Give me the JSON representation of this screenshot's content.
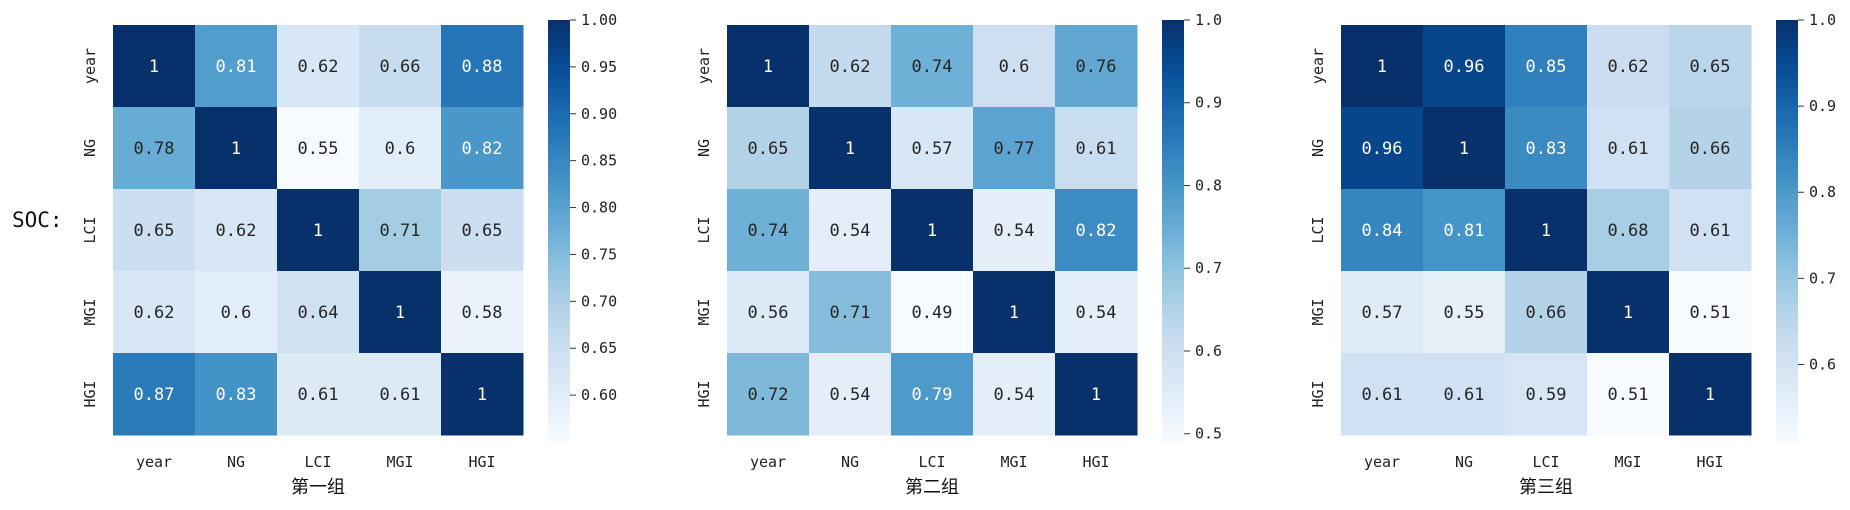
{
  "side_label": "SOC:",
  "colormap": {
    "name": "Blues",
    "stops": [
      "#f7fbff",
      "#deebf7",
      "#c6dbef",
      "#9ecae1",
      "#6baed6",
      "#4292c6",
      "#2171b5",
      "#08519c",
      "#08306b"
    ]
  },
  "chart_data": [
    {
      "type": "heatmap",
      "xlabel": "第一组",
      "row_labels": [
        "year",
        "NG",
        "LCI",
        "MGI",
        "HGI"
      ],
      "col_labels": [
        "year",
        "NG",
        "LCI",
        "MGI",
        "HGI"
      ],
      "values": [
        [
          1,
          0.81,
          0.62,
          0.66,
          0.88
        ],
        [
          0.78,
          1,
          0.55,
          0.6,
          0.82
        ],
        [
          0.65,
          0.62,
          1,
          0.71,
          0.65
        ],
        [
          0.62,
          0.6,
          0.64,
          1,
          0.58
        ],
        [
          0.87,
          0.83,
          0.61,
          0.61,
          1
        ]
      ],
      "colorbar": {
        "vmin": 0.55,
        "vmax": 1.0,
        "ticks": [
          0.6,
          0.65,
          0.7,
          0.75,
          0.8,
          0.85,
          0.9,
          0.95,
          1.0
        ],
        "tick_labels": [
          "0.60",
          "0.65",
          "0.70",
          "0.75",
          "0.80",
          "0.85",
          "0.90",
          "0.95",
          "1.00"
        ]
      }
    },
    {
      "type": "heatmap",
      "xlabel": "第二组",
      "row_labels": [
        "year",
        "NG",
        "LCI",
        "MGI",
        "HGI"
      ],
      "col_labels": [
        "year",
        "NG",
        "LCI",
        "MGI",
        "HGI"
      ],
      "values": [
        [
          1,
          0.62,
          0.74,
          0.6,
          0.76
        ],
        [
          0.65,
          1,
          0.57,
          0.77,
          0.61
        ],
        [
          0.74,
          0.54,
          1,
          0.54,
          0.82
        ],
        [
          0.56,
          0.71,
          0.49,
          1,
          0.54
        ],
        [
          0.72,
          0.54,
          0.79,
          0.54,
          1
        ]
      ],
      "colorbar": {
        "vmin": 0.49,
        "vmax": 1.0,
        "ticks": [
          0.5,
          0.6,
          0.7,
          0.8,
          0.9,
          1.0
        ],
        "tick_labels": [
          "0.5",
          "0.6",
          "0.7",
          "0.8",
          "0.9",
          "1.0"
        ]
      }
    },
    {
      "type": "heatmap",
      "xlabel": "第三组",
      "row_labels": [
        "year",
        "NG",
        "LCI",
        "MGI",
        "HGI"
      ],
      "col_labels": [
        "year",
        "NG",
        "LCI",
        "MGI",
        "HGI"
      ],
      "values": [
        [
          1,
          0.96,
          0.85,
          0.62,
          0.65
        ],
        [
          0.96,
          1,
          0.83,
          0.61,
          0.66
        ],
        [
          0.84,
          0.81,
          1,
          0.68,
          0.61
        ],
        [
          0.57,
          0.55,
          0.66,
          1,
          0.51
        ],
        [
          0.61,
          0.61,
          0.59,
          0.51,
          1
        ]
      ],
      "colorbar": {
        "vmin": 0.51,
        "vmax": 1.0,
        "ticks": [
          0.6,
          0.7,
          0.8,
          0.9,
          1.0
        ],
        "tick_labels": [
          "0.6",
          "0.7",
          "0.8",
          "0.9",
          "1.0"
        ]
      }
    }
  ]
}
